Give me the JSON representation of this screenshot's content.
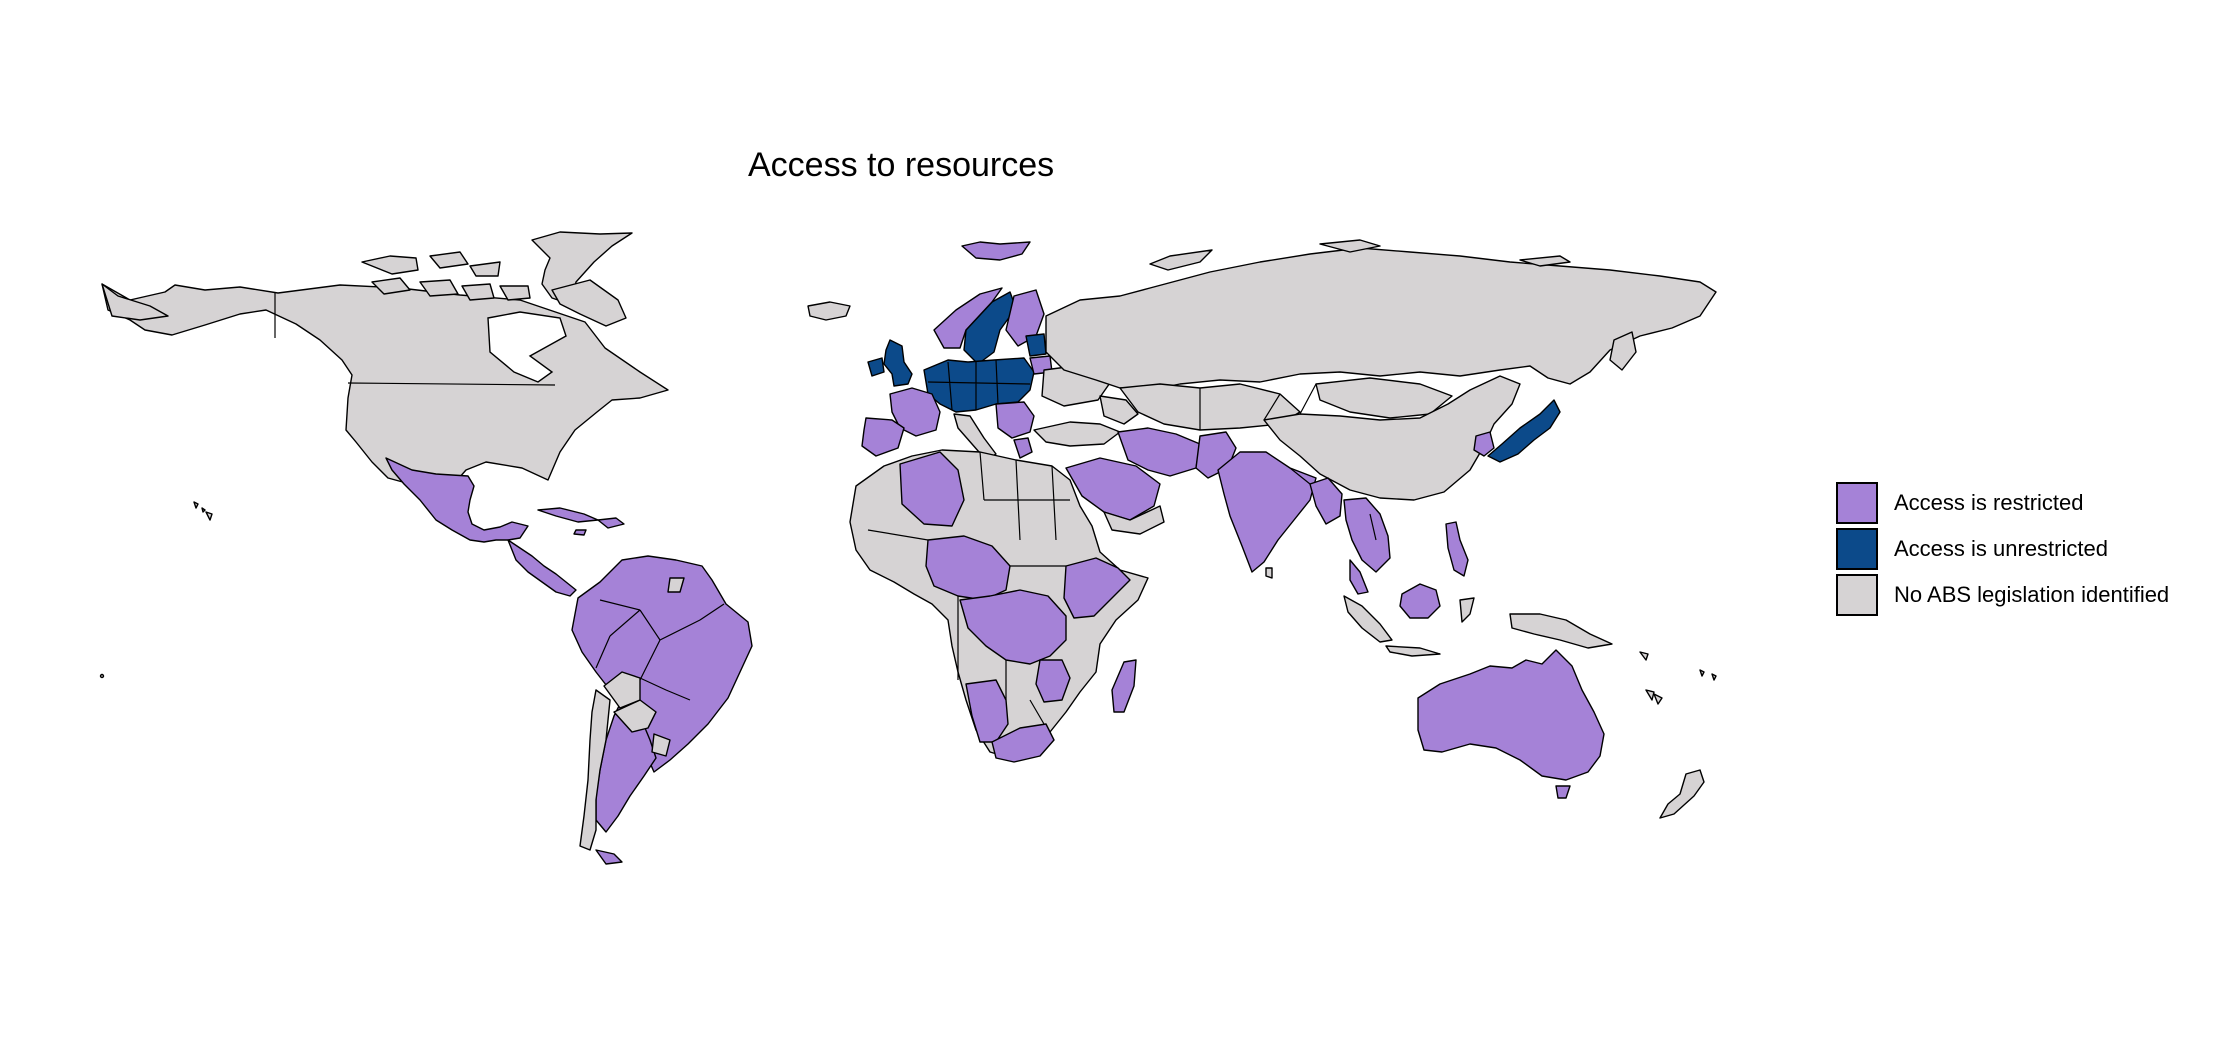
{
  "title": "Access to resources",
  "colors": {
    "restricted": "#a582d7",
    "unrestricted": "#0c4a8a",
    "none": "#d6d3d4"
  },
  "legend": [
    {
      "key": "restricted",
      "label": "Access is restricted"
    },
    {
      "key": "unrestricted",
      "label": "Access is unrestricted"
    },
    {
      "key": "none",
      "label": "No ABS legislation identified"
    }
  ]
}
